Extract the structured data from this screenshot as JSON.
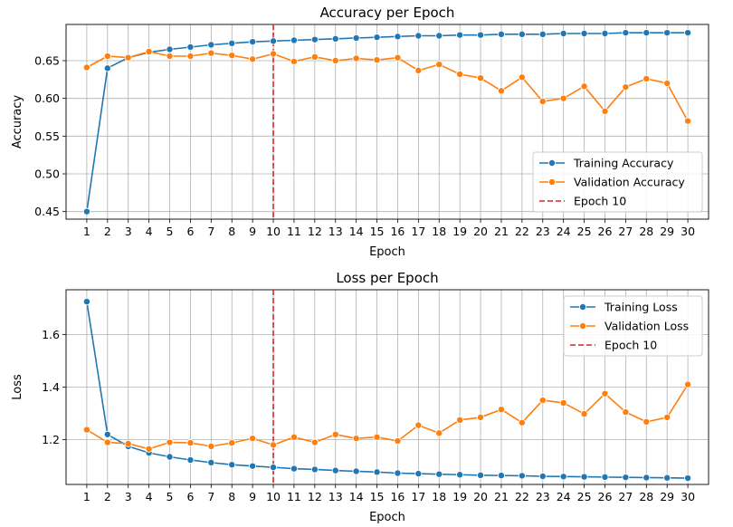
{
  "chart_data": [
    {
      "type": "line",
      "title": "Accuracy per Epoch",
      "xlabel": "Epoch",
      "ylabel": "Accuracy",
      "x": [
        1,
        2,
        3,
        4,
        5,
        6,
        7,
        8,
        9,
        10,
        11,
        12,
        13,
        14,
        15,
        16,
        17,
        18,
        19,
        20,
        21,
        22,
        23,
        24,
        25,
        26,
        27,
        28,
        29,
        30
      ],
      "xlim": [
        0,
        31
      ],
      "ylim": [
        0.44,
        0.698
      ],
      "yticks": [
        "0.45",
        "0.50",
        "0.55",
        "0.60",
        "0.65"
      ],
      "ytick_values": [
        0.45,
        0.5,
        0.55,
        0.6,
        0.65
      ],
      "grid": true,
      "legend_position": "lower-right",
      "vline": {
        "x": 10,
        "label": "Epoch 10",
        "color": "#d62728"
      },
      "series": [
        {
          "name": "Training Accuracy",
          "color": "#1f77b4",
          "values": [
            0.45,
            0.64,
            0.654,
            0.661,
            0.665,
            0.668,
            0.671,
            0.673,
            0.675,
            0.676,
            0.677,
            0.678,
            0.679,
            0.68,
            0.681,
            0.682,
            0.683,
            0.683,
            0.684,
            0.684,
            0.685,
            0.685,
            0.685,
            0.686,
            0.686,
            0.686,
            0.687,
            0.687,
            0.687,
            0.687
          ]
        },
        {
          "name": "Validation Accuracy",
          "color": "#ff7f0e",
          "values": [
            0.641,
            0.656,
            0.654,
            0.662,
            0.656,
            0.656,
            0.66,
            0.657,
            0.652,
            0.659,
            0.649,
            0.655,
            0.65,
            0.653,
            0.651,
            0.654,
            0.637,
            0.645,
            0.632,
            0.627,
            0.61,
            0.628,
            0.596,
            0.6,
            0.616,
            0.583,
            0.615,
            0.626,
            0.62,
            0.57
          ]
        }
      ]
    },
    {
      "type": "line",
      "title": "Loss per Epoch",
      "xlabel": "Epoch",
      "ylabel": "Loss",
      "x": [
        1,
        2,
        3,
        4,
        5,
        6,
        7,
        8,
        9,
        10,
        11,
        12,
        13,
        14,
        15,
        16,
        17,
        18,
        19,
        20,
        21,
        22,
        23,
        24,
        25,
        26,
        27,
        28,
        29,
        30
      ],
      "xlim": [
        0,
        31
      ],
      "ylim": [
        1.03,
        1.77
      ],
      "yticks": [
        "1.2",
        "1.4",
        "1.6"
      ],
      "ytick_values": [
        1.2,
        1.4,
        1.6
      ],
      "grid": true,
      "legend_position": "upper-right",
      "vline": {
        "x": 10,
        "label": "Epoch 10",
        "color": "#d62728"
      },
      "series": [
        {
          "name": "Training Loss",
          "color": "#1f77b4",
          "values": [
            1.725,
            1.22,
            1.175,
            1.15,
            1.135,
            1.123,
            1.113,
            1.105,
            1.1,
            1.095,
            1.09,
            1.087,
            1.083,
            1.08,
            1.077,
            1.073,
            1.071,
            1.069,
            1.067,
            1.065,
            1.064,
            1.063,
            1.061,
            1.06,
            1.059,
            1.058,
            1.057,
            1.056,
            1.055,
            1.054
          ]
        },
        {
          "name": "Validation Loss",
          "color": "#ff7f0e",
          "values": [
            1.238,
            1.19,
            1.185,
            1.165,
            1.19,
            1.188,
            1.175,
            1.188,
            1.205,
            1.18,
            1.21,
            1.19,
            1.22,
            1.205,
            1.21,
            1.195,
            1.255,
            1.225,
            1.275,
            1.285,
            1.315,
            1.265,
            1.35,
            1.34,
            1.298,
            1.375,
            1.305,
            1.268,
            1.285,
            1.41
          ]
        }
      ]
    }
  ]
}
